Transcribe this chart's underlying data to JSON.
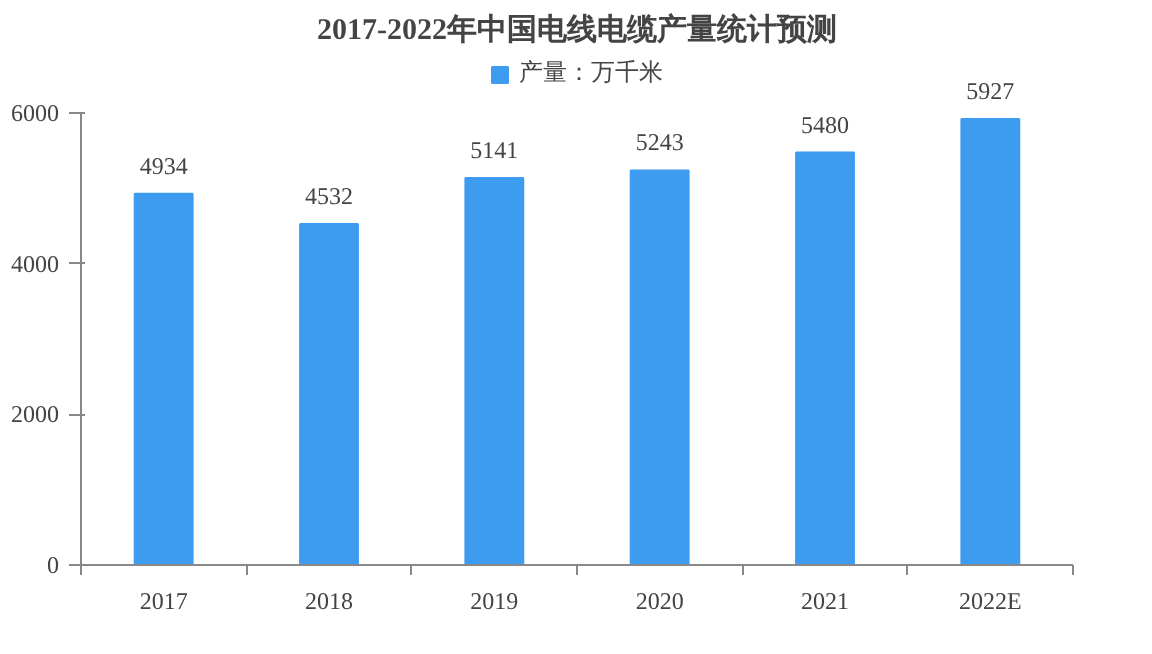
{
  "chart_data": {
    "type": "bar",
    "title": "2017-2022年中国电线电缆产量统计预测",
    "categories": [
      "2017",
      "2018",
      "2019",
      "2020",
      "2021",
      "2022E"
    ],
    "series": [
      {
        "name": "产量：万千米",
        "color": "#3d9cf0",
        "values": [
          4934,
          4532,
          5141,
          5243,
          5480,
          5927
        ]
      }
    ],
    "ylim": [
      0,
      6000
    ],
    "yticks": [
      0,
      2000,
      4000,
      6000
    ],
    "grid": false,
    "legend": "top",
    "data_labels": true
  }
}
